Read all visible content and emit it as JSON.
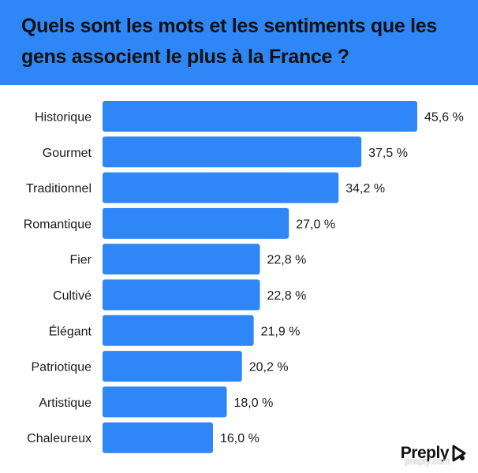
{
  "title": "Quels sont les mots et les sentiments que les gens associent le plus à la France ?",
  "colors": {
    "accent": "#2f86f6",
    "bar": "#2f86f6",
    "text": "#111111"
  },
  "chart_data": {
    "type": "bar",
    "orientation": "horizontal",
    "title": "Quels sont les mots et les sentiments que les gens associent le plus à la France ?",
    "categories": [
      "Historique",
      "Gourmet",
      "Traditionnel",
      "Romantique",
      "Fier",
      "Cultivé",
      "Élégant",
      "Patriotique",
      "Artistique",
      "Chaleureux"
    ],
    "values": [
      45.6,
      37.5,
      34.2,
      27.0,
      22.8,
      22.8,
      21.9,
      20.2,
      18.0,
      16.0
    ],
    "value_labels": [
      "45,6 %",
      "37,5 %",
      "34,2 %",
      "27,0 %",
      "22,8 %",
      "22,8 %",
      "21,9 %",
      "20,2 %",
      "18,0 %",
      "16,0 %"
    ],
    "xlim": [
      0,
      45.6
    ],
    "grid": false,
    "legend": "none"
  },
  "logo": {
    "text": "Preply",
    "icon": "preply-logo-icon"
  },
  "watermark": "preply.com"
}
